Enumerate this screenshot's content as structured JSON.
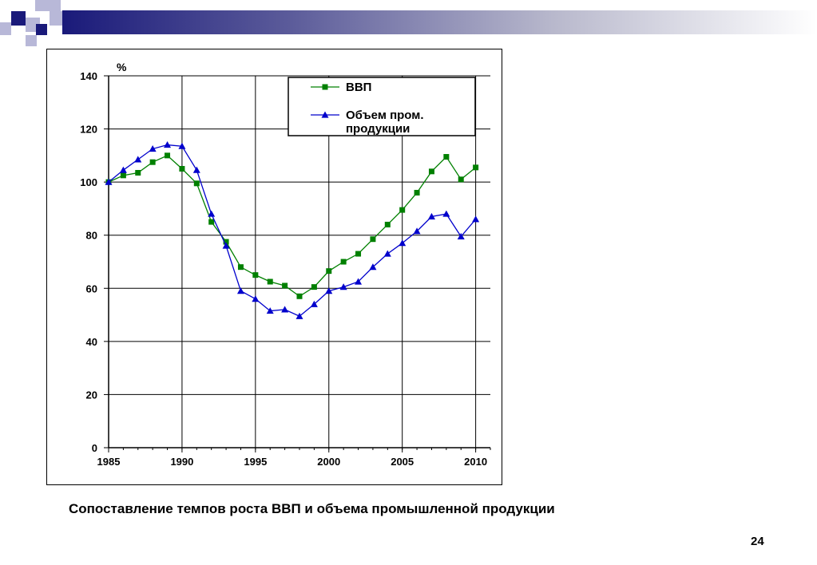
{
  "slide": {
    "caption": "Сопоставление темпов роста ВВП и объема промышленной продукции",
    "page_number": "24",
    "colors": {
      "header_dark": "#1a1a7a",
      "square_light": "#b8b8d8",
      "square_dark": "#1a1a7a"
    }
  },
  "chart_data": {
    "type": "line",
    "title": "",
    "xlabel": "",
    "ylabel": "%",
    "xlim": [
      1985,
      2011
    ],
    "ylim": [
      0,
      140
    ],
    "xticks": [
      1985,
      1990,
      1995,
      2000,
      2005,
      2010
    ],
    "yticks": [
      0,
      20,
      40,
      60,
      80,
      100,
      120,
      140
    ],
    "grid": true,
    "legend_position": "top-right",
    "series": [
      {
        "name": "ВВП",
        "color": "#008000",
        "marker": "square",
        "x": [
          1985,
          1986,
          1987,
          1988,
          1989,
          1990,
          1991,
          1992,
          1993,
          1994,
          1995,
          1996,
          1997,
          1998,
          1999,
          2000,
          2001,
          2002,
          2003,
          2004,
          2005,
          2006,
          2007,
          2008,
          2009,
          2010
        ],
        "values": [
          100,
          102.5,
          103.5,
          107.5,
          110,
          105,
          99.5,
          85,
          77.5,
          68,
          65,
          62.5,
          61,
          57,
          60.5,
          66.5,
          70,
          73,
          78.5,
          84,
          89.5,
          96,
          104,
          109.5,
          101,
          105.5
        ]
      },
      {
        "name": "Объем пром. продукции",
        "color": "#0000cc",
        "marker": "triangle",
        "x": [
          1985,
          1986,
          1987,
          1988,
          1989,
          1990,
          1991,
          1992,
          1993,
          1994,
          1995,
          1996,
          1997,
          1998,
          1999,
          2000,
          2001,
          2002,
          2003,
          2004,
          2005,
          2006,
          2007,
          2008,
          2009,
          2010
        ],
        "values": [
          100,
          104.5,
          108.5,
          112.5,
          114,
          113.5,
          104.5,
          88,
          76,
          59,
          56,
          51.5,
          52,
          49.5,
          54,
          59,
          60.5,
          62.5,
          68,
          73,
          77,
          81.5,
          87,
          88,
          79.5,
          86
        ]
      }
    ]
  }
}
